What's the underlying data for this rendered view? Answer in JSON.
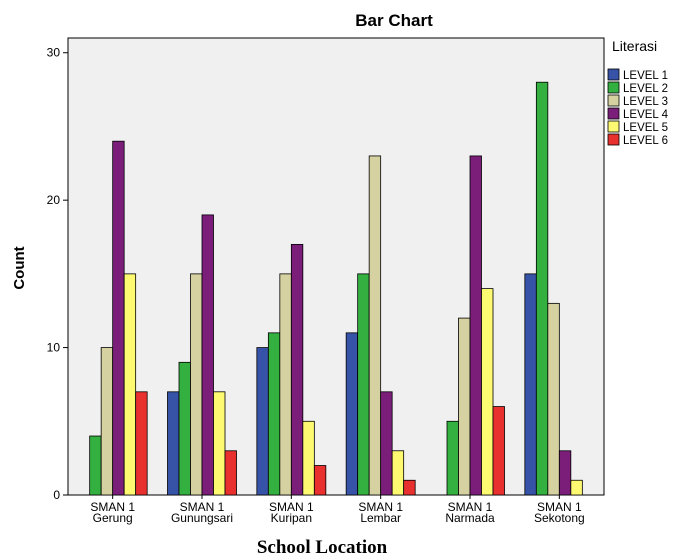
{
  "chart_data": {
    "type": "bar",
    "title": "Bar Chart",
    "xlabel": "School Location",
    "ylabel": "Count",
    "ylim": [
      0,
      31
    ],
    "yticks": [
      0,
      10,
      20,
      30
    ],
    "grid": false,
    "legend_title": "Literasi",
    "legend_position": "right",
    "categories": [
      [
        "SMAN 1",
        "Gerung"
      ],
      [
        "SMAN 1",
        "Gunungsari"
      ],
      [
        "SMAN 1",
        "Kuripan"
      ],
      [
        "SMAN 1",
        "Lembar"
      ],
      [
        "SMAN 1",
        "Narmada"
      ],
      [
        "SMAN 1",
        "Sekotong"
      ]
    ],
    "series": [
      {
        "name": "LEVEL 1",
        "color": "#3753a7",
        "values": [
          0,
          7,
          10,
          11,
          0,
          15
        ]
      },
      {
        "name": "LEVEL 2",
        "color": "#33b040",
        "values": [
          4,
          9,
          11,
          15,
          5,
          28
        ]
      },
      {
        "name": "LEVEL 3",
        "color": "#d6d1a0",
        "values": [
          10,
          15,
          15,
          23,
          12,
          13
        ]
      },
      {
        "name": "LEVEL 4",
        "color": "#7a1e7a",
        "values": [
          24,
          19,
          17,
          7,
          23,
          3
        ]
      },
      {
        "name": "LEVEL 5",
        "color": "#fdfa72",
        "values": [
          15,
          7,
          5,
          3,
          14,
          1
        ]
      },
      {
        "name": "LEVEL 6",
        "color": "#e8312f",
        "values": [
          7,
          3,
          2,
          1,
          6,
          0
        ]
      }
    ],
    "colors": {
      "plot_background": "#f0f0f0",
      "axis": "#000000"
    }
  }
}
